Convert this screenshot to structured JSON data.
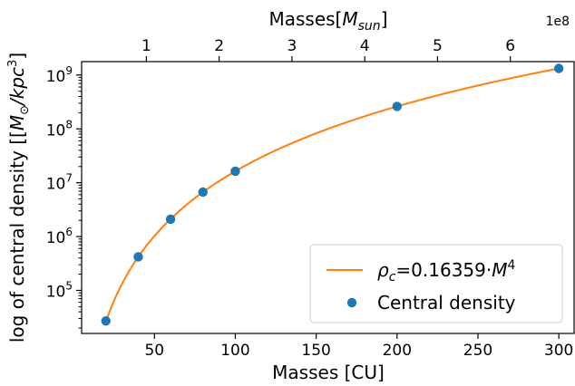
{
  "chart_data": {
    "type": "scatter",
    "title": "",
    "xlabel": "Masses [CU]",
    "ylabel": "log of central density [[M⊙/kpc³]",
    "top_xlabel": "Masses[M_sun]",
    "top_xlabel_parts": {
      "base": "Masses[",
      "italic": "M",
      "sub": "sun",
      "end": "]"
    },
    "top_offset_label": "1e8",
    "xlim": [
      5,
      310
    ],
    "ylim_log10": [
      4.2,
      9.25
    ],
    "yscale": "log",
    "grid": false,
    "legend_placement": "bottom-right",
    "x_ticks": [
      50,
      100,
      150,
      200,
      250,
      300
    ],
    "x_tick_labels": [
      "50",
      "100",
      "150",
      "200",
      "250",
      "300"
    ],
    "y_tick_exponents": [
      5,
      6,
      7,
      8,
      9
    ],
    "y_tick_labels": [
      "10",
      "10",
      "10",
      "10",
      "10"
    ],
    "top_ticks": [
      1,
      2,
      3,
      4,
      5,
      6
    ],
    "top_tick_labels": [
      "1",
      "2",
      "3",
      "4",
      "5",
      "6"
    ],
    "top_axis_scale_per_cu": 0.02222,
    "fit": {
      "name": "ρc=0.16359·M4",
      "label_parts": {
        "rho": "ρ",
        "sub": "c",
        "text": "=0.16359·",
        "M": "M",
        "exp": "4"
      },
      "coefficient": 0.16359,
      "power": 4,
      "x_range": [
        20,
        300
      ],
      "color": "#ff7f0e"
    },
    "series": [
      {
        "name": "Central density",
        "color": "#1f77b4",
        "x": [
          20,
          40,
          60,
          80,
          100,
          200,
          300
        ],
        "y": [
          27000,
          420000,
          2100000,
          6700000,
          16400000,
          262000000,
          1330000000
        ]
      }
    ]
  }
}
